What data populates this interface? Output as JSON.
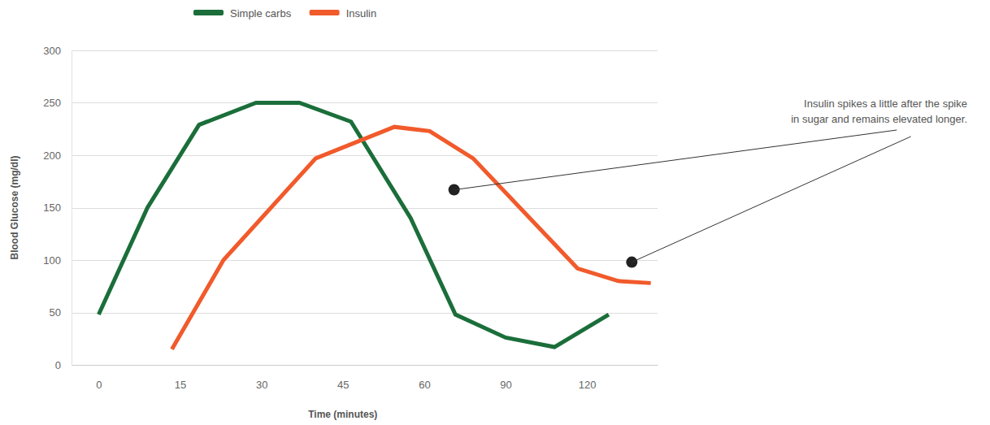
{
  "chart_data": {
    "type": "line",
    "x_label": "Time (minutes)",
    "y_label": "Blood Glucose (mg/dl)",
    "xlim": [
      -5,
      146
    ],
    "xticks": [
      0,
      15,
      30,
      45,
      60,
      90,
      120
    ],
    "ylim": [
      0,
      300
    ],
    "yticks": [
      0,
      50,
      100,
      150,
      200,
      250,
      300
    ],
    "grid": true,
    "legend": "top",
    "series": [
      {
        "name": "Simple carbs",
        "color": "#1b6e3a",
        "x": [
          0,
          9,
          18.5,
          29,
          37,
          46.5,
          57.5,
          71.5,
          90,
          108,
          128
        ],
        "values": [
          48,
          150,
          229,
          250,
          250,
          232,
          140,
          48,
          26,
          17,
          48
        ]
      },
      {
        "name": "Insulin",
        "color": "#f15a2b",
        "x": [
          13.5,
          23,
          40,
          54.5,
          62,
          78,
          116.5,
          131.5,
          143.5
        ],
        "values": [
          15,
          100,
          197,
          227,
          223,
          197,
          92,
          80,
          78
        ]
      }
    ],
    "annotations": [
      {
        "text": [
          "Insulin spikes a little after the spike",
          "in sugar and remains elevated longer."
        ],
        "x": [
          71,
          136.5
        ],
        "y": [
          167,
          98
        ]
      }
    ]
  }
}
